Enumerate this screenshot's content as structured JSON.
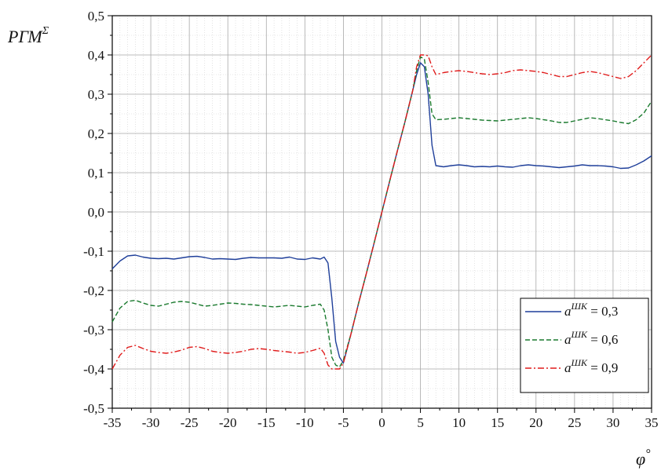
{
  "chart_data": {
    "type": "line",
    "xlabel": "φ°",
    "ylabel": "РГМ^Σ",
    "xlim": [
      -35,
      35
    ],
    "ylim": [
      -0.5,
      0.5
    ],
    "xticks": [
      -35,
      -30,
      -25,
      -20,
      -15,
      -10,
      -5,
      0,
      5,
      10,
      15,
      20,
      25,
      30,
      35
    ],
    "xtick_labels": [
      "-35",
      "-30",
      "-25",
      "-20",
      "-15",
      "-10",
      "-5",
      "0",
      "5",
      "10",
      "15",
      "20",
      "25",
      "30",
      "35"
    ],
    "yticks": [
      -0.5,
      -0.4,
      -0.3,
      -0.2,
      -0.1,
      0.0,
      0.1,
      0.2,
      0.3,
      0.4,
      0.5
    ],
    "ytick_labels": [
      "-0,5",
      "-0,4",
      "-0,3",
      "-0,2",
      "-0,1",
      "0,0",
      "0,1",
      "0,2",
      "0,3",
      "0,4",
      "0,5"
    ],
    "grid": true,
    "legend_position": "bottom-right",
    "series": [
      {
        "name": "a^ШК = 0,3",
        "color": "#1f3f9a",
        "dash": "solid",
        "x": [
          -35,
          -34,
          -33,
          -32,
          -31,
          -30,
          -29,
          -28,
          -27,
          -26,
          -25,
          -24,
          -23,
          -22,
          -21,
          -20,
          -19,
          -18,
          -17,
          -16,
          -15,
          -14,
          -13,
          -12,
          -11,
          -10,
          -9,
          -8,
          -7.5,
          -7,
          -6.5,
          -6,
          -5.5,
          -5,
          -4,
          -3,
          -2,
          -1,
          0,
          1,
          2,
          3,
          4,
          4.5,
          5,
          5.5,
          6,
          6.5,
          7,
          8,
          9,
          10,
          11,
          12,
          13,
          14,
          15,
          16,
          17,
          18,
          19,
          20,
          21,
          22,
          23,
          24,
          25,
          26,
          27,
          28,
          29,
          30,
          31,
          32,
          33,
          34,
          35
        ],
        "y": [
          -0.145,
          -0.125,
          -0.112,
          -0.11,
          -0.115,
          -0.118,
          -0.119,
          -0.118,
          -0.12,
          -0.117,
          -0.114,
          -0.113,
          -0.116,
          -0.12,
          -0.119,
          -0.12,
          -0.121,
          -0.118,
          -0.116,
          -0.117,
          -0.117,
          -0.117,
          -0.118,
          -0.115,
          -0.12,
          -0.121,
          -0.117,
          -0.12,
          -0.115,
          -0.13,
          -0.22,
          -0.33,
          -0.37,
          -0.385,
          -0.31,
          -0.23,
          -0.155,
          -0.078,
          0.0,
          0.078,
          0.155,
          0.23,
          0.31,
          0.35,
          0.38,
          0.37,
          0.3,
          0.17,
          0.118,
          0.115,
          0.118,
          0.12,
          0.118,
          0.115,
          0.116,
          0.115,
          0.117,
          0.115,
          0.114,
          0.118,
          0.12,
          0.118,
          0.117,
          0.115,
          0.113,
          0.115,
          0.117,
          0.12,
          0.118,
          0.118,
          0.117,
          0.115,
          0.111,
          0.112,
          0.12,
          0.13,
          0.143
        ]
      },
      {
        "name": "a^ШК = 0,6",
        "color": "#1a7a2e",
        "dash": "dashed",
        "x": [
          -35,
          -34,
          -33,
          -32,
          -31,
          -30,
          -29,
          -28,
          -27,
          -26,
          -25,
          -24,
          -23,
          -22,
          -21,
          -20,
          -19,
          -18,
          -17,
          -16,
          -15,
          -14,
          -13,
          -12,
          -11,
          -10,
          -9,
          -8,
          -7.5,
          -7,
          -6.5,
          -6,
          -5.5,
          -5,
          -4,
          -3,
          -2,
          -1,
          0,
          1,
          2,
          3,
          4,
          4.5,
          5,
          5.5,
          6,
          6.5,
          7,
          8,
          9,
          10,
          11,
          12,
          13,
          14,
          15,
          16,
          17,
          18,
          19,
          20,
          21,
          22,
          23,
          24,
          25,
          26,
          27,
          28,
          29,
          30,
          31,
          32,
          33,
          34,
          35
        ],
        "y": [
          -0.28,
          -0.245,
          -0.228,
          -0.225,
          -0.232,
          -0.238,
          -0.24,
          -0.235,
          -0.23,
          -0.228,
          -0.23,
          -0.235,
          -0.24,
          -0.238,
          -0.235,
          -0.232,
          -0.233,
          -0.235,
          -0.236,
          -0.238,
          -0.24,
          -0.242,
          -0.24,
          -0.238,
          -0.24,
          -0.242,
          -0.238,
          -0.235,
          -0.25,
          -0.3,
          -0.37,
          -0.39,
          -0.395,
          -0.378,
          -0.31,
          -0.23,
          -0.155,
          -0.078,
          0.0,
          0.078,
          0.155,
          0.23,
          0.31,
          0.36,
          0.395,
          0.39,
          0.33,
          0.25,
          0.235,
          0.236,
          0.238,
          0.24,
          0.238,
          0.236,
          0.234,
          0.233,
          0.232,
          0.234,
          0.236,
          0.238,
          0.24,
          0.238,
          0.235,
          0.232,
          0.228,
          0.228,
          0.232,
          0.236,
          0.24,
          0.238,
          0.235,
          0.232,
          0.228,
          0.225,
          0.235,
          0.252,
          0.282
        ]
      },
      {
        "name": "a^ШК = 0,9",
        "color": "#e01b1b",
        "dash": "dashdot",
        "x": [
          -35,
          -34,
          -33,
          -32,
          -31,
          -30,
          -29,
          -28,
          -27,
          -26,
          -25,
          -24,
          -23,
          -22,
          -21,
          -20,
          -19,
          -18,
          -17,
          -16,
          -15,
          -14,
          -13,
          -12,
          -11,
          -10,
          -9,
          -8,
          -7.5,
          -7,
          -6.5,
          -6,
          -5.5,
          -5,
          -4,
          -3,
          -2,
          -1,
          0,
          1,
          2,
          3,
          4,
          4.5,
          5,
          5.5,
          6,
          6.5,
          7,
          8,
          9,
          10,
          11,
          12,
          13,
          14,
          15,
          16,
          17,
          18,
          19,
          20,
          21,
          22,
          23,
          24,
          25,
          26,
          27,
          28,
          29,
          30,
          31,
          32,
          33,
          34,
          35
        ],
        "y": [
          -0.4,
          -0.365,
          -0.345,
          -0.34,
          -0.348,
          -0.355,
          -0.358,
          -0.36,
          -0.357,
          -0.352,
          -0.345,
          -0.343,
          -0.348,
          -0.355,
          -0.358,
          -0.36,
          -0.358,
          -0.355,
          -0.35,
          -0.348,
          -0.35,
          -0.353,
          -0.355,
          -0.357,
          -0.36,
          -0.358,
          -0.353,
          -0.347,
          -0.36,
          -0.39,
          -0.4,
          -0.4,
          -0.4,
          -0.385,
          -0.31,
          -0.23,
          -0.155,
          -0.078,
          0.0,
          0.078,
          0.155,
          0.23,
          0.31,
          0.37,
          0.4,
          0.4,
          0.398,
          0.37,
          0.35,
          0.355,
          0.358,
          0.36,
          0.358,
          0.355,
          0.352,
          0.35,
          0.352,
          0.355,
          0.36,
          0.362,
          0.36,
          0.358,
          0.355,
          0.35,
          0.345,
          0.345,
          0.35,
          0.355,
          0.358,
          0.355,
          0.35,
          0.345,
          0.34,
          0.345,
          0.36,
          0.38,
          0.4
        ]
      }
    ]
  }
}
